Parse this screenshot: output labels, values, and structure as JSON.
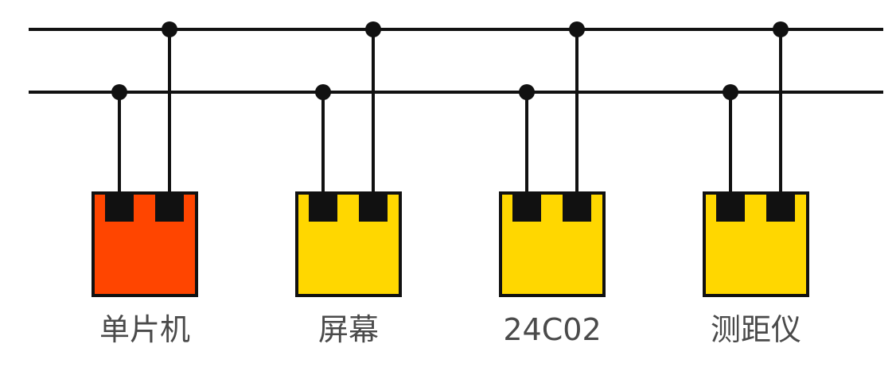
{
  "colors": {
    "line": "#111111",
    "label": "#4a4a4a",
    "mcu_fill": "#FF4500",
    "peripheral_fill": "#FFD700"
  },
  "devices": [
    {
      "label": "单片机",
      "fill": "#FF4500"
    },
    {
      "label": "屏幕",
      "fill": "#FFD700"
    },
    {
      "label": "24C02",
      "fill": "#FFD700"
    },
    {
      "label": "测距仪",
      "fill": "#FFD700"
    }
  ]
}
